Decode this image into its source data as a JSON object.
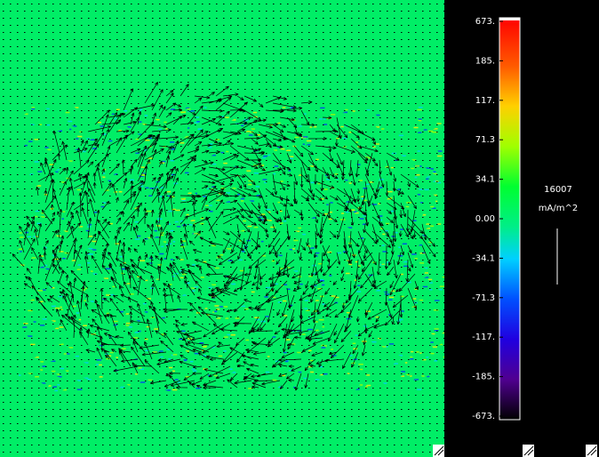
{
  "colorbar": {
    "ticks": [
      "673.",
      "185.",
      "117.",
      "71.3",
      "34.1",
      "0.00",
      "-34.1",
      "-71.3",
      "-117.",
      "-185.",
      "-673."
    ]
  },
  "annotation": {
    "value": "16007",
    "unit": "mA/m^2"
  }
}
